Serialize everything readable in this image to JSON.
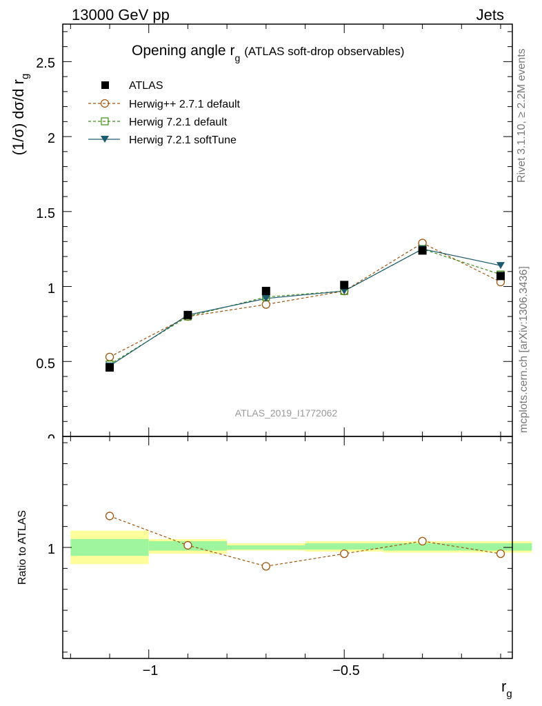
{
  "header": {
    "left": "13000 GeV pp",
    "right": "Jets"
  },
  "plot_title": {
    "main": "Opening angle r",
    "sub": "g",
    "rest": "(ATLAS soft-drop observables)"
  },
  "side_labels": {
    "rivet": "Rivet 3.1.10, ≥ 2.2M events",
    "mcplots": "mcplots.cern.ch [arXiv:1306.3436]"
  },
  "watermark": "ATLAS_2019_I1772062",
  "axes": {
    "ylabel_main": "(1/σ) dσ/d r",
    "ylabel_main_sub": "g",
    "ylabel_ratio": "Ratio to ATLAS",
    "xlabel": "r",
    "xlabel_sub": "g",
    "y_ticks_main": [
      "0.5",
      "1",
      "1.5",
      "2",
      "2.5"
    ],
    "y_tick_cut": "0",
    "y_ticks_ratio": [
      "1"
    ],
    "x_ticks": [
      "−1",
      "−0.5"
    ]
  },
  "colors": {
    "atlas": "#000000",
    "herwigpp": "#a0520a",
    "herwig721": "#3c8c14",
    "softtune": "#1e5a6e",
    "band_inner": "#9ef59e",
    "band_outer": "#fdfd9b"
  },
  "chart_data": [
    {
      "type": "line",
      "title": "Opening angle r_g (ATLAS soft-drop observables)",
      "xlabel": "r_g",
      "ylabel": "(1/σ) dσ/d r_g",
      "xlim": [
        -1.22,
        -0.07
      ],
      "ylim": [
        0,
        2.75
      ],
      "grid": false,
      "legend_position": "top-left",
      "series": [
        {
          "name": "ATLAS",
          "marker": "filled-square",
          "line": "none",
          "x": [
            -1.1,
            -0.9,
            -0.7,
            -0.5,
            -0.3,
            -0.1
          ],
          "y": [
            0.46,
            0.81,
            0.97,
            1.01,
            1.24,
            1.07
          ]
        },
        {
          "name": "Herwig++ 2.7.1 default",
          "marker": "open-circle",
          "line": "dashed",
          "x": [
            -1.1,
            -0.9,
            -0.7,
            -0.5,
            -0.3,
            -0.1
          ],
          "y": [
            0.53,
            0.8,
            0.88,
            0.97,
            1.29,
            1.03
          ]
        },
        {
          "name": "Herwig 7.2.1 default",
          "marker": "open-square",
          "line": "dashed",
          "x": [
            -1.1,
            -0.9,
            -0.7,
            -0.5,
            -0.3,
            -0.1
          ],
          "y": [
            0.48,
            0.8,
            0.93,
            0.97,
            1.25,
            1.08
          ]
        },
        {
          "name": "Herwig 7.2.1 softTune",
          "marker": "filled-triangle-down",
          "line": "solid",
          "x": [
            -1.1,
            -0.9,
            -0.7,
            -0.5,
            -0.3,
            -0.1
          ],
          "y": [
            0.47,
            0.81,
            0.92,
            0.97,
            1.25,
            1.14
          ]
        }
      ]
    },
    {
      "type": "line",
      "xlabel": "r_g",
      "ylabel": "Ratio to ATLAS",
      "xlim": [
        -1.22,
        -0.07
      ],
      "ylim": [
        0.47,
        1.53
      ],
      "bins": [
        -1.2,
        -1.0,
        -0.8,
        -0.6,
        -0.4,
        -0.2,
        -0.02
      ],
      "band_outer": [
        [
          0.92,
          1.08
        ],
        [
          0.97,
          1.04
        ],
        [
          0.985,
          1.02
        ],
        [
          0.98,
          1.03
        ],
        [
          0.975,
          1.03
        ],
        [
          0.975,
          1.03
        ]
      ],
      "band_inner": [
        [
          0.96,
          1.04
        ],
        [
          0.985,
          1.03
        ],
        [
          0.99,
          1.01
        ],
        [
          0.99,
          1.02
        ],
        [
          0.985,
          1.02
        ],
        [
          0.985,
          1.02
        ]
      ],
      "series": [
        {
          "name": "Herwig++ 2.7.1 default",
          "marker": "open-circle",
          "line": "dashed",
          "x": [
            -1.1,
            -0.9,
            -0.7,
            -0.5,
            -0.3,
            -0.1
          ],
          "y": [
            1.15,
            1.01,
            0.91,
            0.97,
            1.03,
            0.97
          ]
        }
      ]
    }
  ]
}
